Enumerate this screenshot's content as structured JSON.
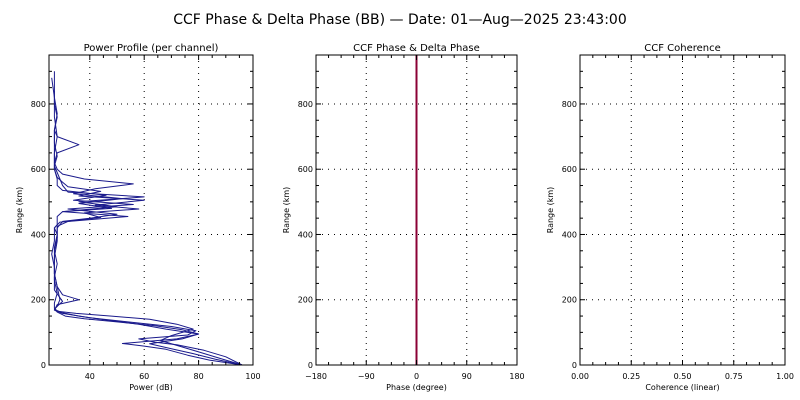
{
  "figure_title": "CCF Phase & Delta Phase (BB) — Date: 01—Aug—2025 23:43:00",
  "chart_data": [
    {
      "type": "line",
      "title": "Power Profile (per channel)",
      "xlabel": "Power (dB)",
      "ylabel": "Range (km)",
      "xlim": [
        25,
        100
      ],
      "ylim": [
        0,
        950
      ],
      "xticks": [
        40,
        60,
        80,
        100
      ],
      "xtick_labels": [
        "40",
        "60",
        "80",
        "100"
      ],
      "yticks": [
        0,
        200,
        400,
        600,
        800
      ],
      "ytick_labels": [
        "0",
        "200",
        "400",
        "600",
        "800"
      ],
      "grid": true,
      "color": "#1a1a8c",
      "series": [
        {
          "x": [
            96,
            88,
            80,
            72,
            66,
            70,
            74,
            78,
            72,
            62,
            48,
            35,
            28,
            27,
            27,
            28,
            27,
            27,
            26,
            27,
            27,
            28,
            28,
            28,
            30,
            48,
            36,
            52,
            34,
            42,
            56,
            38,
            30,
            28,
            27,
            28,
            36,
            28,
            27,
            28,
            27,
            27,
            27,
            27
          ],
          "y": [
            0,
            20,
            40,
            60,
            75,
            90,
            100,
            110,
            125,
            140,
            150,
            158,
            165,
            175,
            190,
            220,
            260,
            300,
            340,
            380,
            420,
            430,
            445,
            455,
            470,
            480,
            495,
            510,
            525,
            540,
            555,
            570,
            585,
            600,
            620,
            650,
            675,
            700,
            720,
            760,
            800,
            830,
            870,
            900
          ]
        },
        {
          "x": [
            96,
            86,
            78,
            70,
            62,
            74,
            80,
            68,
            58,
            46,
            36,
            30,
            27,
            28,
            29,
            28,
            27,
            27,
            27,
            28,
            27,
            29,
            54,
            30,
            50,
            36,
            60,
            32,
            30,
            29,
            28,
            27,
            28,
            27,
            27,
            28,
            27,
            26
          ],
          "y": [
            0,
            18,
            35,
            50,
            65,
            80,
            95,
            110,
            125,
            138,
            150,
            160,
            170,
            180,
            200,
            240,
            280,
            320,
            360,
            400,
            420,
            438,
            455,
            470,
            485,
            500,
            515,
            530,
            550,
            570,
            590,
            610,
            640,
            680,
            720,
            770,
            820,
            880
          ]
        },
        {
          "x": [
            96,
            90,
            82,
            72,
            64,
            58,
            76,
            79,
            70,
            54,
            40,
            30,
            27,
            28,
            36,
            30,
            28,
            27,
            27,
            28,
            28,
            30,
            40,
            50,
            32,
            56,
            34,
            46,
            30,
            28,
            28,
            27,
            27,
            28,
            27,
            27
          ],
          "y": [
            0,
            25,
            45,
            62,
            70,
            80,
            92,
            105,
            118,
            132,
            145,
            158,
            168,
            185,
            200,
            215,
            240,
            280,
            330,
            380,
            420,
            440,
            450,
            462,
            478,
            492,
            505,
            520,
            535,
            550,
            570,
            600,
            650,
            700,
            760,
            840
          ]
        },
        {
          "x": [
            96,
            84,
            76,
            68,
            60,
            52,
            72,
            80,
            74,
            64,
            50,
            38,
            31,
            28,
            27,
            30,
            27,
            27,
            28,
            27,
            28,
            28,
            32,
            44,
            38,
            58,
            42,
            60,
            36,
            44,
            32,
            30,
            28,
            27,
            27,
            27
          ],
          "y": [
            0,
            15,
            30,
            48,
            58,
            66,
            80,
            95,
            108,
            120,
            132,
            142,
            150,
            162,
            172,
            195,
            230,
            270,
            310,
            350,
            390,
            425,
            440,
            452,
            466,
            478,
            490,
            505,
            518,
            532,
            546,
            560,
            575,
            600,
            640,
            720
          ]
        }
      ]
    },
    {
      "type": "line",
      "title": "CCF Phase & Delta Phase",
      "xlabel": "Phase (degree)",
      "ylabel": "Range (km)",
      "xlim": [
        -180,
        180
      ],
      "ylim": [
        0,
        950
      ],
      "xticks": [
        -180,
        -90,
        0,
        90,
        180
      ],
      "xtick_labels": [
        "−180",
        "−90",
        "0",
        "90",
        "180"
      ],
      "yticks": [
        0,
        200,
        400,
        600,
        800
      ],
      "ytick_labels": [
        "0",
        "200",
        "400",
        "600",
        "800"
      ],
      "grid": true,
      "color": "#8b0035",
      "series": [
        {
          "x": [
            0,
            0
          ],
          "y": [
            0,
            950
          ]
        }
      ]
    },
    {
      "type": "line",
      "title": "CCF Coherence",
      "xlabel": "Coherence (linear)",
      "ylabel": "Range (km)",
      "xlim": [
        0,
        1
      ],
      "ylim": [
        0,
        950
      ],
      "xticks": [
        0,
        0.25,
        0.5,
        0.75,
        1.0
      ],
      "xtick_labels": [
        "0.00",
        "0.25",
        "0.50",
        "0.75",
        "1.00"
      ],
      "yticks": [
        0,
        200,
        400,
        600,
        800
      ],
      "ytick_labels": [
        "0",
        "200",
        "400",
        "600",
        "800"
      ],
      "grid": true,
      "color": "#1a1a8c",
      "series": []
    }
  ]
}
